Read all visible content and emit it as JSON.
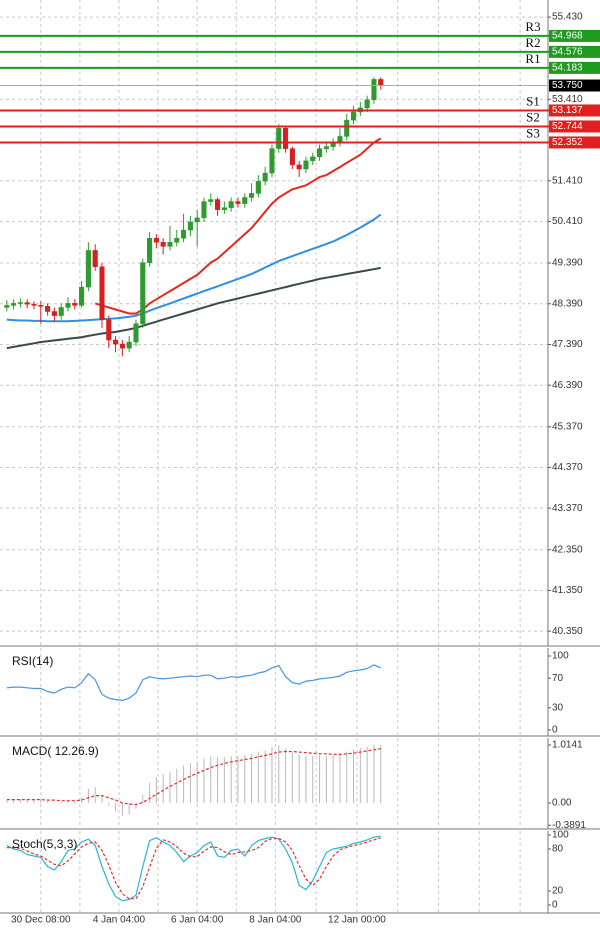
{
  "chart_data": [
    {
      "type": "candlestick",
      "xlim": [
        -1,
        79.6
      ],
      "ylim": [
        40.01,
        55.85
      ],
      "yticks": [
        {
          "value": 55.43,
          "label": "55.430"
        },
        {
          "value": 53.41,
          "label": "53.410"
        },
        {
          "value": 51.41,
          "label": "51.410"
        },
        {
          "value": 50.41,
          "label": "50.410"
        },
        {
          "value": 49.39,
          "label": "49.390"
        },
        {
          "value": 48.39,
          "label": "48.390"
        },
        {
          "value": 47.39,
          "label": "47.390"
        },
        {
          "value": 46.39,
          "label": "46.390"
        },
        {
          "value": 45.37,
          "label": "45.370"
        },
        {
          "value": 44.37,
          "label": "44.370"
        },
        {
          "value": 43.37,
          "label": "43.370"
        },
        {
          "value": 42.35,
          "label": "42.350"
        },
        {
          "value": 41.35,
          "label": "41.350"
        },
        {
          "value": 40.35,
          "label": "40.350"
        }
      ],
      "grid": true,
      "up_color": "#2f9a2f",
      "down_color": "#d42020",
      "open": [
        48.3,
        48.35,
        48.4,
        48.42,
        48.38,
        48.35,
        48.33,
        48.2,
        48.1,
        48.3,
        48.4,
        48.35,
        48.8,
        49.7,
        49.3,
        48.0,
        47.5,
        47.4,
        47.3,
        47.45,
        47.9,
        49.4,
        50.0,
        49.9,
        49.8,
        49.9,
        50.0,
        50.2,
        50.4,
        50.5,
        50.9,
        50.95,
        50.7,
        50.75,
        50.9,
        50.85,
        51.0,
        51.1,
        51.4,
        51.6,
        52.2,
        52.7,
        52.2,
        51.8,
        51.7,
        51.9,
        52.0,
        52.2,
        52.25,
        52.35,
        52.5,
        52.9,
        53.1,
        53.2,
        53.4,
        53.9
      ],
      "high": [
        48.48,
        48.5,
        48.52,
        48.5,
        48.45,
        48.45,
        48.4,
        48.3,
        48.4,
        48.55,
        48.5,
        48.95,
        49.9,
        49.85,
        49.4,
        48.1,
        47.6,
        47.5,
        47.6,
        48.0,
        49.5,
        50.15,
        50.1,
        50.0,
        50.3,
        50.2,
        50.6,
        50.55,
        50.7,
        51.0,
        51.1,
        51.0,
        50.9,
        51.0,
        51.0,
        51.1,
        51.35,
        51.55,
        51.75,
        52.3,
        52.8,
        52.75,
        52.25,
        51.9,
        52.0,
        52.1,
        52.3,
        52.35,
        52.45,
        52.7,
        53.05,
        53.25,
        53.35,
        53.5,
        53.95,
        53.95
      ],
      "low": [
        48.2,
        48.25,
        48.3,
        48.28,
        48.25,
        47.9,
        48.1,
        47.95,
        48.0,
        48.2,
        48.25,
        48.3,
        48.7,
        49.2,
        47.8,
        47.3,
        47.2,
        47.1,
        47.2,
        47.35,
        47.8,
        49.3,
        49.75,
        49.6,
        49.7,
        49.8,
        49.9,
        50.05,
        49.8,
        50.4,
        50.8,
        50.55,
        50.6,
        50.65,
        50.75,
        50.75,
        50.9,
        51.0,
        51.3,
        51.5,
        52.1,
        52.1,
        51.7,
        51.5,
        51.6,
        51.8,
        51.9,
        52.1,
        52.15,
        52.25,
        52.4,
        52.8,
        53.0,
        53.1,
        53.3,
        53.65
      ],
      "close": [
        48.35,
        48.4,
        48.42,
        48.38,
        48.35,
        48.33,
        48.2,
        48.1,
        48.3,
        48.4,
        48.35,
        48.8,
        49.7,
        49.3,
        48.0,
        47.5,
        47.4,
        47.3,
        47.45,
        47.9,
        49.4,
        50.0,
        49.9,
        49.8,
        49.9,
        50.0,
        50.2,
        50.4,
        50.5,
        50.9,
        50.95,
        50.7,
        50.75,
        50.9,
        50.85,
        51.0,
        51.1,
        51.4,
        51.6,
        52.2,
        52.7,
        52.2,
        51.8,
        51.7,
        51.9,
        52.0,
        52.2,
        52.25,
        52.35,
        52.5,
        52.9,
        53.1,
        53.2,
        53.4,
        53.9,
        53.75
      ],
      "series": [
        {
          "color": "#e02a1e",
          "values": [
            null,
            null,
            null,
            null,
            null,
            null,
            null,
            null,
            null,
            null,
            null,
            null,
            null,
            48.4,
            48.35,
            48.3,
            48.25,
            48.2,
            48.15,
            48.15,
            48.25,
            48.4,
            48.5,
            48.6,
            48.7,
            48.8,
            48.9,
            49.0,
            49.1,
            49.25,
            49.4,
            49.5,
            49.65,
            49.8,
            49.95,
            50.1,
            50.25,
            50.45,
            50.65,
            50.85,
            51.0,
            51.1,
            51.2,
            51.25,
            51.3,
            51.4,
            51.5,
            51.55,
            51.65,
            51.75,
            51.85,
            51.95,
            52.05,
            52.2,
            52.35,
            52.45
          ]
        },
        {
          "color": "#2f8fe0",
          "values": [
            48.0,
            47.99,
            47.98,
            47.98,
            47.97,
            47.97,
            47.96,
            47.96,
            47.96,
            47.96,
            47.97,
            47.98,
            47.99,
            48.0,
            48.01,
            48.02,
            48.03,
            48.05,
            48.07,
            48.1,
            48.15,
            48.22,
            48.28,
            48.34,
            48.4,
            48.46,
            48.52,
            48.58,
            48.64,
            48.7,
            48.76,
            48.82,
            48.88,
            48.94,
            49.0,
            49.06,
            49.12,
            49.2,
            49.28,
            49.36,
            49.44,
            49.5,
            49.56,
            49.62,
            49.68,
            49.74,
            49.8,
            49.86,
            49.92,
            50.0,
            50.08,
            50.17,
            50.26,
            50.36,
            50.46,
            50.58
          ]
        },
        {
          "color": "#3a4a44",
          "values": [
            47.3,
            47.33,
            47.36,
            47.39,
            47.42,
            47.45,
            47.47,
            47.49,
            47.51,
            47.53,
            47.55,
            47.57,
            47.6,
            47.63,
            47.66,
            47.68,
            47.7,
            47.73,
            47.76,
            47.8,
            47.85,
            47.9,
            47.95,
            48.0,
            48.05,
            48.1,
            48.15,
            48.2,
            48.25,
            48.3,
            48.35,
            48.4,
            48.44,
            48.48,
            48.52,
            48.56,
            48.6,
            48.64,
            48.68,
            48.72,
            48.76,
            48.8,
            48.84,
            48.88,
            48.92,
            48.96,
            49.0,
            49.03,
            49.06,
            49.09,
            49.12,
            49.15,
            49.18,
            49.21,
            49.24,
            49.27
          ]
        }
      ],
      "levels": [
        {
          "label": "R3",
          "value": 54.968,
          "color": "#1f9a1f"
        },
        {
          "label": "R2",
          "value": 54.576,
          "color": "#1f9a1f"
        },
        {
          "label": "R1",
          "value": 54.183,
          "color": "#1f9a1f"
        },
        {
          "label": "S1",
          "value": 53.137,
          "color": "#e02020"
        },
        {
          "label": "S2",
          "value": 52.744,
          "color": "#e02020"
        },
        {
          "label": "S3",
          "value": 52.352,
          "color": "#e02020"
        }
      ],
      "last": {
        "value": 53.75,
        "label": "53.750"
      }
    },
    {
      "type": "line",
      "title": "RSI(14)",
      "xlim": [
        -1,
        79.6
      ],
      "ylim": [
        -6.8,
        110.8
      ],
      "yticks": [
        100,
        70,
        30,
        0
      ],
      "series": [
        {
          "color": "#4a94dc",
          "values": [
            57,
            58,
            58,
            57,
            56,
            56,
            52,
            50,
            55,
            58,
            57,
            64,
            76,
            68,
            48,
            43,
            41,
            40,
            43,
            50,
            68,
            72,
            70,
            69,
            70,
            71,
            72,
            73,
            72,
            74,
            74,
            69,
            70,
            72,
            71,
            73,
            74,
            77,
            79,
            84,
            87,
            72,
            64,
            62,
            66,
            67,
            69,
            70,
            71,
            73,
            78,
            80,
            81,
            83,
            88,
            84
          ]
        }
      ]
    },
    {
      "type": "macd",
      "title": "MACD( 12.26.9)",
      "xlim": [
        -1,
        79.6
      ],
      "ylim": [
        -0.437,
        1.136
      ],
      "yticks": [
        1.0141,
        {
          "value": 0,
          "label": "0.00"
        },
        -0.3891
      ],
      "series": [
        {
          "type": "bar",
          "color": "#b8b8b8",
          "values": [
            0.05,
            0.06,
            0.07,
            0.07,
            0.06,
            0.05,
            0.03,
            0.01,
            0.02,
            0.04,
            0.04,
            0.1,
            0.25,
            0.28,
            0.12,
            -0.05,
            -0.15,
            -0.22,
            -0.2,
            -0.1,
            0.15,
            0.35,
            0.45,
            0.5,
            0.55,
            0.6,
            0.65,
            0.7,
            0.72,
            0.78,
            0.82,
            0.8,
            0.8,
            0.82,
            0.82,
            0.84,
            0.86,
            0.9,
            0.92,
            0.98,
            1.01,
            0.95,
            0.88,
            0.84,
            0.82,
            0.82,
            0.83,
            0.83,
            0.84,
            0.85,
            0.9,
            0.94,
            0.96,
            0.98,
            1.02,
            1.01
          ]
        },
        {
          "type": "line",
          "dash": true,
          "color": "#e03030",
          "values": [
            0.06,
            0.06,
            0.06,
            0.06,
            0.06,
            0.06,
            0.05,
            0.05,
            0.04,
            0.04,
            0.04,
            0.05,
            0.09,
            0.13,
            0.13,
            0.09,
            0.05,
            0.0,
            -0.02,
            -0.03,
            0.01,
            0.08,
            0.15,
            0.22,
            0.29,
            0.35,
            0.41,
            0.47,
            0.52,
            0.57,
            0.62,
            0.66,
            0.69,
            0.72,
            0.74,
            0.76,
            0.78,
            0.81,
            0.83,
            0.86,
            0.89,
            0.9,
            0.9,
            0.89,
            0.88,
            0.87,
            0.86,
            0.86,
            0.85,
            0.85,
            0.86,
            0.87,
            0.89,
            0.91,
            0.93,
            0.95
          ]
        }
      ]
    },
    {
      "type": "line",
      "title": "Stoch(5,3,3)",
      "xlim": [
        -1,
        79.6
      ],
      "ylim": [
        -10,
        105.7
      ],
      "yticks": [
        100,
        80,
        20,
        0
      ],
      "xticks": [
        {
          "value": 5,
          "label": "30 Dec 08:00"
        },
        {
          "value": 16.5,
          "label": "4 Jan 04:00"
        },
        {
          "value": 28,
          "label": "6 Jan 04:00"
        },
        {
          "value": 39.5,
          "label": "8 Jan 04:00"
        },
        {
          "value": 51.5,
          "label": "12 Jan 00:00"
        }
      ],
      "series": [
        {
          "color": "#2ab6d6",
          "values": [
            85,
            80,
            78,
            72,
            70,
            68,
            55,
            50,
            62,
            78,
            80,
            90,
            94,
            85,
            55,
            30,
            12,
            6,
            8,
            14,
            55,
            92,
            96,
            90,
            85,
            75,
            62,
            70,
            75,
            85,
            90,
            70,
            68,
            78,
            80,
            70,
            85,
            92,
            95,
            97,
            94,
            80,
            60,
            28,
            22,
            35,
            55,
            75,
            80,
            82,
            84,
            88,
            90,
            93,
            97,
            98
          ]
        },
        {
          "color": "#e03030",
          "dash": true,
          "values": [
            82,
            82,
            81,
            77,
            73,
            70,
            64,
            58,
            56,
            63,
            73,
            83,
            88,
            90,
            78,
            57,
            32,
            16,
            9,
            9,
            26,
            54,
            81,
            93,
            90,
            83,
            74,
            69,
            69,
            77,
            83,
            82,
            76,
            72,
            75,
            76,
            78,
            82,
            91,
            95,
            95,
            90,
            78,
            56,
            37,
            28,
            37,
            55,
            70,
            79,
            82,
            85,
            87,
            90,
            93,
            96
          ]
        }
      ]
    }
  ]
}
